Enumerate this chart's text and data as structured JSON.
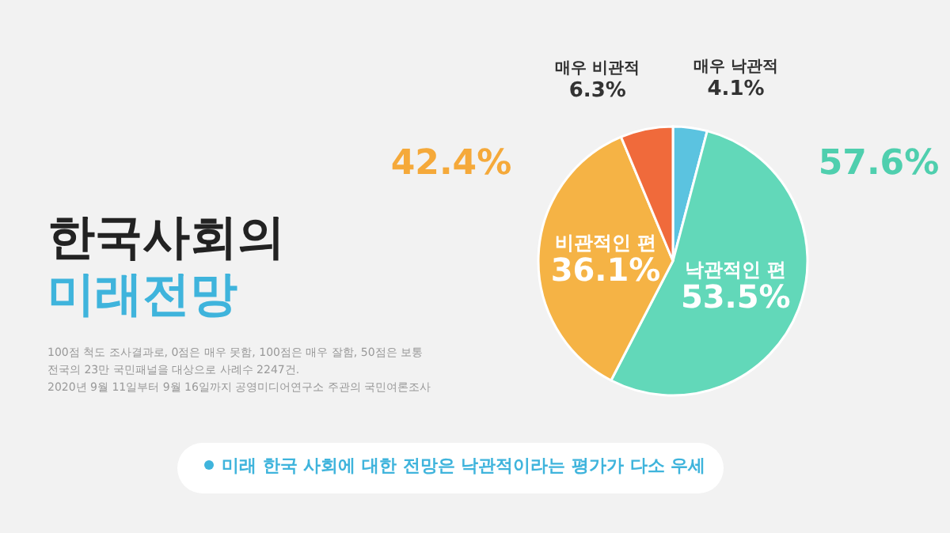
{
  "chart_data": {
    "type": "pie",
    "title": "한국사회의 미래전망",
    "categories": [
      "매우 낙관적",
      "낙관적인 편",
      "비관적인 편",
      "매우 비관적"
    ],
    "values": [
      4.1,
      53.5,
      36.1,
      6.3
    ],
    "colors": [
      "#5bc3e0",
      "#62d8b9",
      "#f5b345",
      "#f06a3b"
    ],
    "value_labels": [
      "4.1%",
      "53.5%",
      "36.1%",
      "6.3%"
    ],
    "annotations": [
      "57.6%",
      "42.4%",
      "100점 척도 조사결과로, 0점은 매우 못함, 100점은 매우 잘함, 50점은 보통",
      "전국의 23만 국민패널을 대상으로 사례수 2247건.",
      "2020년 9월 11일부터 9월 16일까지 공영미디어연구소 주관의 국민여론조사",
      "미래 한국 사회에 대한 전망은 낙관적이라는 평가가 다소 우세"
    ]
  }
}
